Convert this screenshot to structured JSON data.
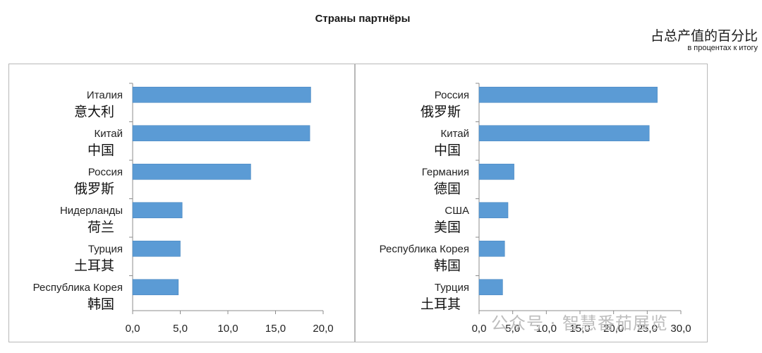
{
  "header": {
    "title": "Страны партнёры",
    "unit_cn": "占总产值的百分比",
    "unit_ru": "в процентах к итогу"
  },
  "watermark": "公众号 · 智慧番茄展览",
  "chart_data": [
    {
      "type": "bar",
      "orientation": "horizontal",
      "title": "",
      "xlabel": "",
      "ylabel": "",
      "categories": [
        "Италия",
        "Китай",
        "Россия",
        "Нидерланды",
        "Турция",
        "Республика Корея"
      ],
      "categories_cn": [
        "意大利",
        "中国",
        "俄罗斯",
        "荷兰",
        "土耳其",
        "韩国"
      ],
      "values": [
        18.7,
        18.6,
        12.4,
        5.2,
        5.0,
        4.8
      ],
      "xlim": [
        0,
        20
      ],
      "xticks": [
        "0,0",
        "5,0",
        "10,0",
        "15,0",
        "20,0"
      ],
      "grid": false,
      "bar_color": "#5b9bd5"
    },
    {
      "type": "bar",
      "orientation": "horizontal",
      "title": "",
      "xlabel": "",
      "ylabel": "",
      "categories": [
        "Россия",
        "Китай",
        "Германия",
        "США",
        "Республика Корея",
        "Турция"
      ],
      "categories_cn": [
        "俄罗斯",
        "中国",
        "德国",
        "美国",
        "韩国",
        "土耳其"
      ],
      "values": [
        26.5,
        25.3,
        5.2,
        4.3,
        3.8,
        3.5
      ],
      "xlim": [
        0,
        30
      ],
      "xticks": [
        "0,0",
        "5,0",
        "10,0",
        "15,0",
        "20,0",
        "25,0",
        "30,0"
      ],
      "grid": false,
      "bar_color": "#5b9bd5"
    }
  ]
}
